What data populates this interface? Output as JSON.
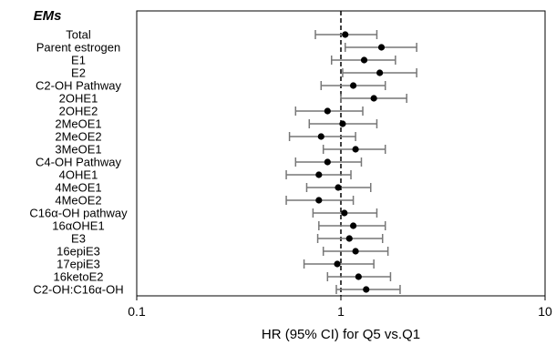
{
  "chart_data": {
    "type": "forest",
    "header": "EMs",
    "xlabel": "HR (95% CI) for Q5 vs.Q1",
    "x_scale": "log",
    "xlim": [
      0.1,
      10
    ],
    "x_ticks": [
      {
        "value": 0.1,
        "label": "0.1"
      },
      {
        "value": 1,
        "label": "1"
      },
      {
        "value": 10,
        "label": "10"
      }
    ],
    "reference_line": 1,
    "rows": [
      {
        "label": "Total",
        "hr": 1.05,
        "lo": 0.75,
        "hi": 1.5
      },
      {
        "label": "Parent estrogen",
        "hr": 1.58,
        "lo": 1.05,
        "hi": 2.35
      },
      {
        "label": "E1",
        "hr": 1.3,
        "lo": 0.9,
        "hi": 1.85
      },
      {
        "label": "E2",
        "hr": 1.55,
        "lo": 1.02,
        "hi": 2.35
      },
      {
        "label": "C2-OH Pathway",
        "hr": 1.15,
        "lo": 0.8,
        "hi": 1.65
      },
      {
        "label": "2OHE1",
        "hr": 1.45,
        "lo": 1.0,
        "hi": 2.1
      },
      {
        "label": "2OHE2",
        "hr": 0.86,
        "lo": 0.6,
        "hi": 1.28
      },
      {
        "label": "2MeOE1",
        "hr": 1.02,
        "lo": 0.7,
        "hi": 1.5
      },
      {
        "label": "2MeOE2",
        "hr": 0.8,
        "lo": 0.56,
        "hi": 1.18
      },
      {
        "label": "3MeOE1",
        "hr": 1.18,
        "lo": 0.82,
        "hi": 1.65
      },
      {
        "label": "C4-OH Pathway",
        "hr": 0.86,
        "lo": 0.6,
        "hi": 1.26
      },
      {
        "label": "4OHE1",
        "hr": 0.78,
        "lo": 0.54,
        "hi": 1.12
      },
      {
        "label": "4MeOE1",
        "hr": 0.97,
        "lo": 0.68,
        "hi": 1.4
      },
      {
        "label": "4MeOE2",
        "hr": 0.78,
        "lo": 0.54,
        "hi": 1.15
      },
      {
        "label": "C16α-OH pathway",
        "hr": 1.04,
        "lo": 0.73,
        "hi": 1.5
      },
      {
        "label": "16αOHE1",
        "hr": 1.15,
        "lo": 0.78,
        "hi": 1.65
      },
      {
        "label": "E3",
        "hr": 1.1,
        "lo": 0.77,
        "hi": 1.6
      },
      {
        "label": "16epiE3",
        "hr": 1.18,
        "lo": 0.82,
        "hi": 1.7
      },
      {
        "label": "17epiE3",
        "hr": 0.96,
        "lo": 0.66,
        "hi": 1.45
      },
      {
        "label": "16ketoE2",
        "hr": 1.22,
        "lo": 0.86,
        "hi": 1.75
      },
      {
        "label": "C2-OH:C16α-OH",
        "hr": 1.33,
        "lo": 0.95,
        "hi": 1.95
      }
    ]
  }
}
